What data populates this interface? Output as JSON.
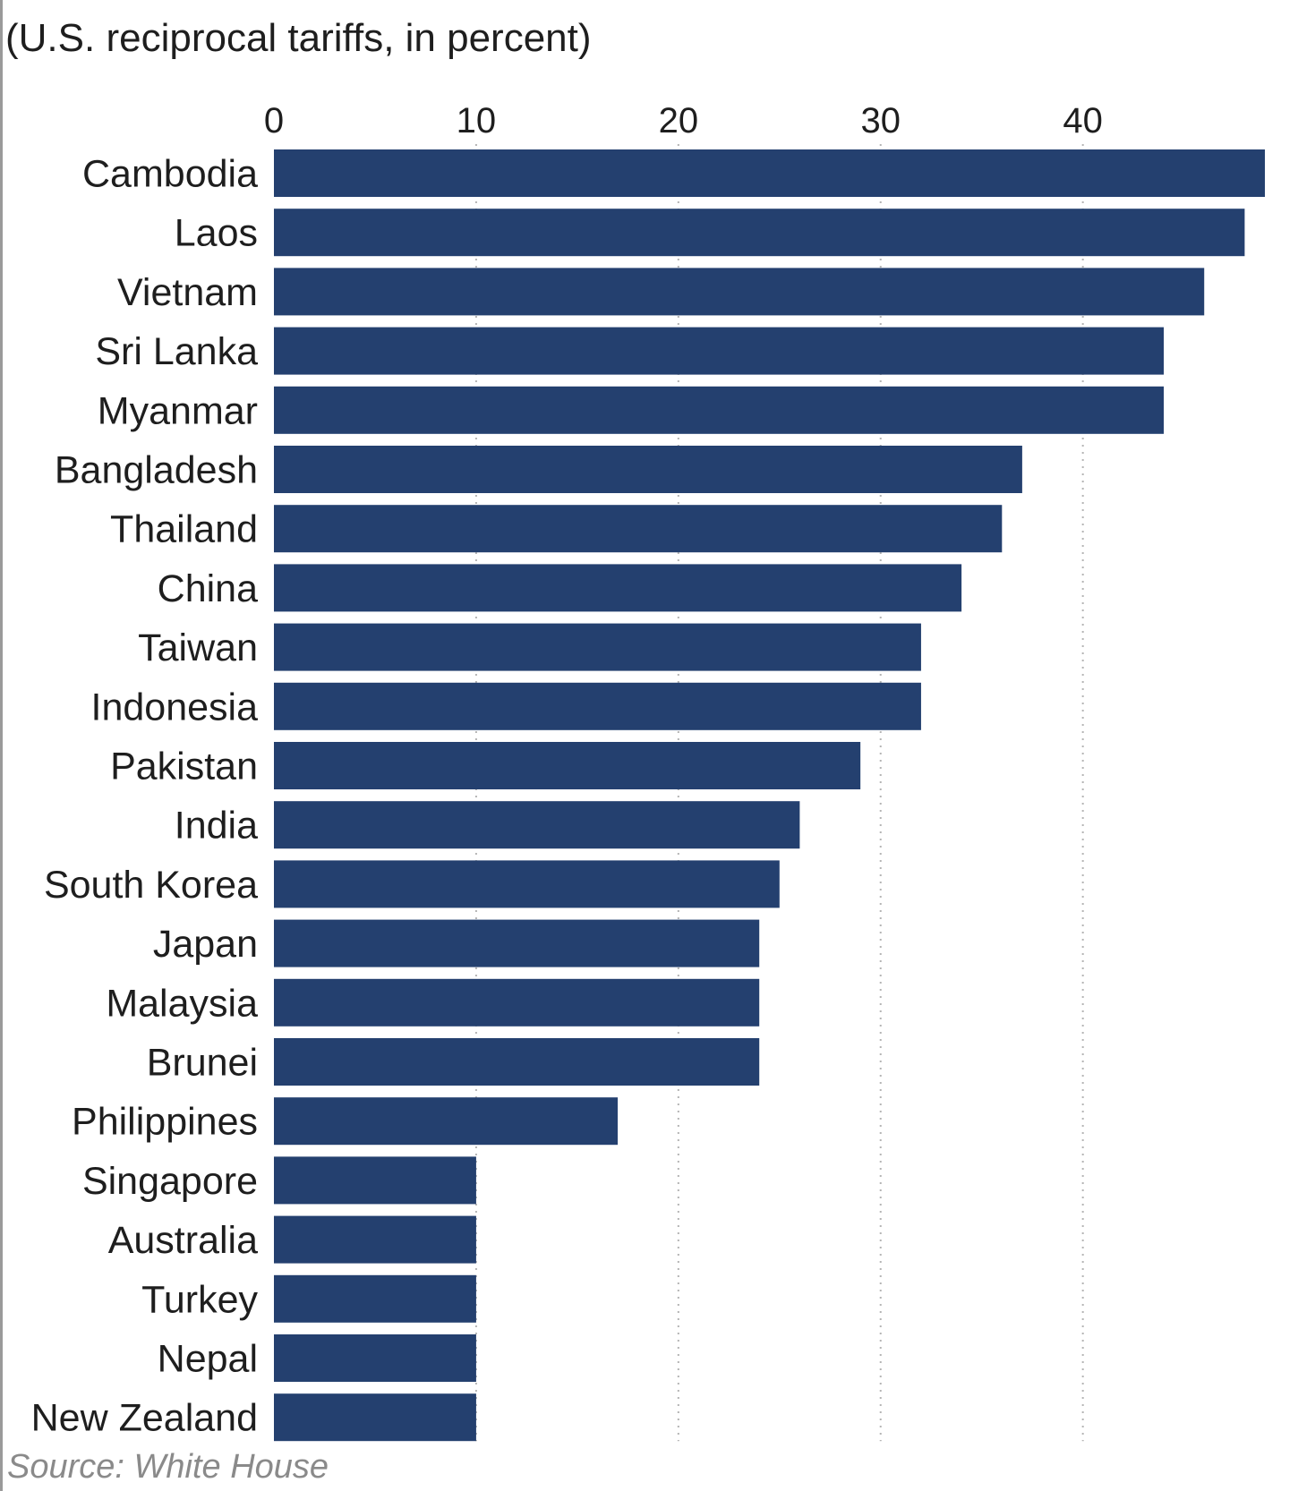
{
  "chart_data": {
    "type": "bar",
    "orientation": "horizontal",
    "subtitle": "(U.S. reciprocal tariffs, in percent)",
    "source": "Source: White House",
    "categories": [
      "Cambodia",
      "Laos",
      "Vietnam",
      "Sri Lanka",
      "Myanmar",
      "Bangladesh",
      "Thailand",
      "China",
      "Taiwan",
      "Indonesia",
      "Pakistan",
      "India",
      "South Korea",
      "Japan",
      "Malaysia",
      "Brunei",
      "Philippines",
      "Singapore",
      "Australia",
      "Turkey",
      "Nepal",
      "New Zealand"
    ],
    "values": [
      49,
      48,
      46,
      44,
      44,
      37,
      36,
      34,
      32,
      32,
      29,
      26,
      25,
      24,
      24,
      24,
      17,
      10,
      10,
      10,
      10,
      10
    ],
    "xticks": [
      0,
      10,
      20,
      30,
      40
    ],
    "xlim": [
      0,
      49
    ],
    "grid": "vertical dotted",
    "bar_color": "#24406f",
    "grid_color": "#b5b5b5"
  }
}
